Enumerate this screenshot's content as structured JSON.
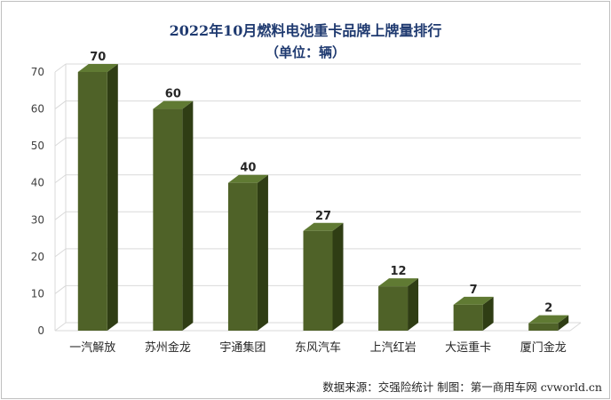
{
  "chart_data": {
    "type": "bar",
    "title": "2022年10月燃料电池重卡品牌上牌量排行",
    "subtitle": "（单位：辆）",
    "categories": [
      "一汽解放",
      "苏州金龙",
      "宇通集团",
      "东风汽车",
      "上汽红岩",
      "大运重卡",
      "厦门金龙"
    ],
    "values": [
      70,
      60,
      40,
      27,
      12,
      7,
      2
    ],
    "ylim": [
      0,
      70
    ],
    "yticks": [
      0,
      10,
      20,
      30,
      40,
      50,
      60,
      70
    ],
    "grid": true,
    "legend": "none",
    "bar_style": "3d",
    "colors": {
      "bar_front": "#4f6228",
      "bar_side": "#2f3d14",
      "bar_top": "#607a33",
      "grid": "#d9d9d9"
    }
  },
  "source": "数据来源：交强险统计  制图：第一商用车网 cvworld.cn"
}
